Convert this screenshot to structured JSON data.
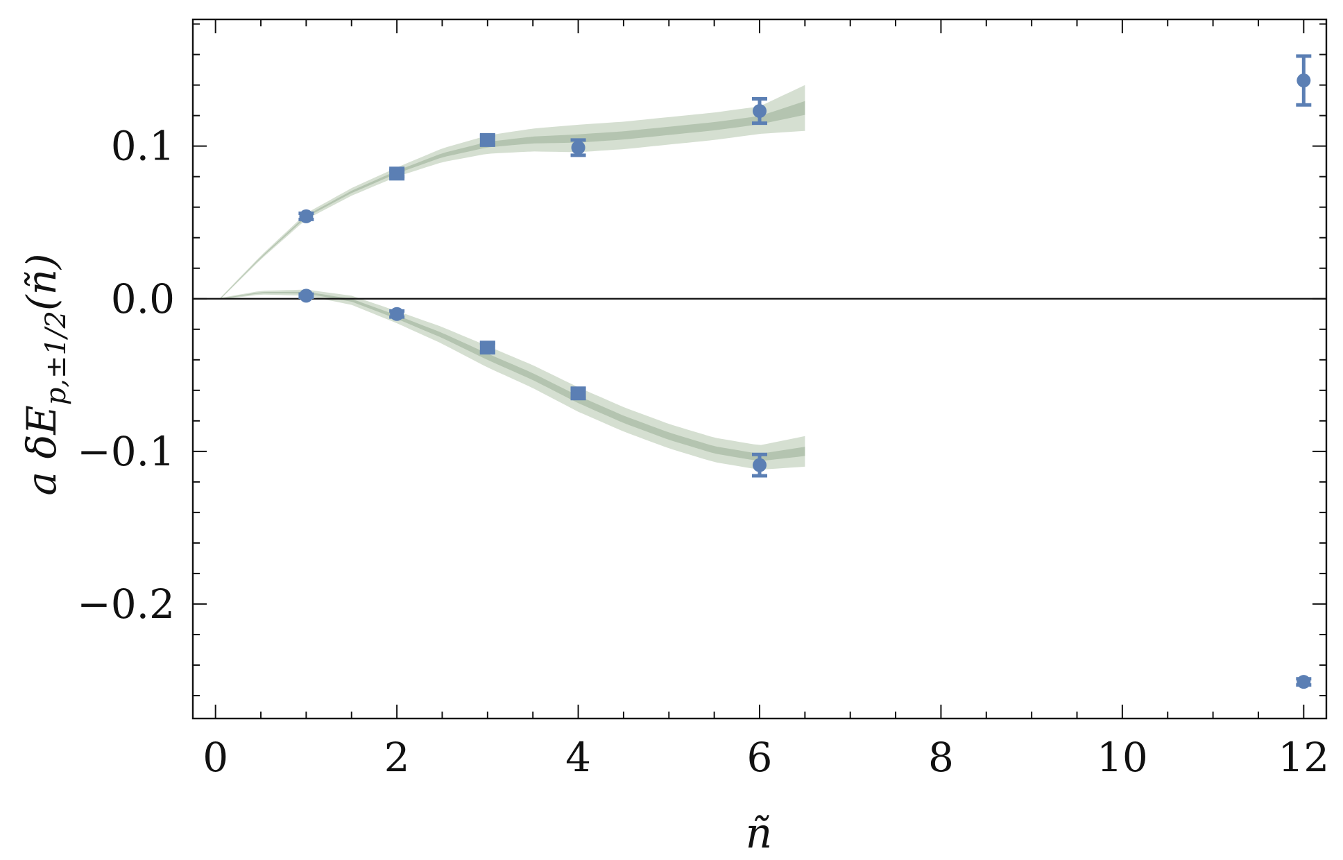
{
  "chart_data": {
    "type": "scatter",
    "title": "",
    "xlabel": "ñ",
    "ylabel": {
      "base": "a δE",
      "subscript": "p,±1/2",
      "arg": "(ñ)"
    },
    "xlim": [
      -0.25,
      12.25
    ],
    "ylim": [
      -0.275,
      0.183
    ],
    "x_ticks": [
      0,
      2,
      4,
      6,
      8,
      10,
      12
    ],
    "x_tick_labels": [
      "0",
      "2",
      "4",
      "6",
      "8",
      "10",
      "12"
    ],
    "y_ticks": [
      -0.2,
      -0.1,
      0.0,
      0.1
    ],
    "y_tick_labels": [
      "−0.2",
      "−0.1",
      "0.0",
      "0.1"
    ],
    "grid": false,
    "zero_line": true,
    "colors": {
      "marker": "#5b7fb4",
      "band": "#c7d4c2",
      "band_core": "#9fb39a",
      "axis": "#111111"
    },
    "series": [
      {
        "points": [
          {
            "x": 1,
            "y": 0.054,
            "err": 0.002,
            "marker": "circle"
          },
          {
            "x": 2,
            "y": 0.082,
            "err": 0.002,
            "marker": "square"
          },
          {
            "x": 3,
            "y": 0.104,
            "err": 0.003,
            "marker": "square"
          },
          {
            "x": 4,
            "y": 0.099,
            "err": 0.005,
            "marker": "circle"
          },
          {
            "x": 6,
            "y": 0.123,
            "err": 0.008,
            "marker": "circle"
          },
          {
            "x": 12,
            "y": 0.143,
            "err": 0.016,
            "marker": "circle"
          }
        ]
      },
      {
        "points": [
          {
            "x": 1,
            "y": 0.002,
            "err": 0.001,
            "marker": "circle"
          },
          {
            "x": 2,
            "y": -0.01,
            "err": 0.002,
            "marker": "circle"
          },
          {
            "x": 3,
            "y": -0.032,
            "err": 0.003,
            "marker": "square"
          },
          {
            "x": 4,
            "y": -0.062,
            "err": 0.003,
            "marker": "square"
          },
          {
            "x": 6,
            "y": -0.109,
            "err": 0.007,
            "marker": "circle"
          },
          {
            "x": 12,
            "y": -0.251,
            "err": 0.002,
            "marker": "circle"
          }
        ]
      }
    ],
    "fit_bands": [
      {
        "x_max": 6.5,
        "center": [
          [
            0.05,
            0.0
          ],
          [
            0.5,
            0.027
          ],
          [
            1,
            0.054
          ],
          [
            1.5,
            0.07
          ],
          [
            2,
            0.083
          ],
          [
            2.5,
            0.094
          ],
          [
            3,
            0.101
          ],
          [
            3.5,
            0.104
          ],
          [
            4,
            0.105
          ],
          [
            4.5,
            0.107
          ],
          [
            5,
            0.11
          ],
          [
            5.5,
            0.113
          ],
          [
            6,
            0.117
          ],
          [
            6.5,
            0.125
          ]
        ],
        "halfwidth": [
          [
            0.05,
            0.0005
          ],
          [
            1,
            0.002
          ],
          [
            2,
            0.003
          ],
          [
            3,
            0.006
          ],
          [
            4,
            0.009
          ],
          [
            5,
            0.009
          ],
          [
            6,
            0.009
          ],
          [
            6.5,
            0.015
          ]
        ]
      },
      {
        "x_max": 6.5,
        "center": [
          [
            0.05,
            0.0
          ],
          [
            0.5,
            0.004
          ],
          [
            1,
            0.004
          ],
          [
            1.5,
            -0.001
          ],
          [
            2,
            -0.012
          ],
          [
            2.5,
            -0.024
          ],
          [
            3,
            -0.038
          ],
          [
            3.5,
            -0.051
          ],
          [
            4,
            -0.066
          ],
          [
            4.5,
            -0.079
          ],
          [
            5,
            -0.09
          ],
          [
            5.5,
            -0.099
          ],
          [
            6,
            -0.104
          ],
          [
            6.5,
            -0.1
          ]
        ],
        "halfwidth": [
          [
            0.05,
            0.0005
          ],
          [
            1,
            0.002
          ],
          [
            2,
            0.004
          ],
          [
            3,
            0.007
          ],
          [
            4,
            0.008
          ],
          [
            5,
            0.008
          ],
          [
            6,
            0.008
          ],
          [
            6.5,
            0.01
          ]
        ]
      }
    ]
  }
}
